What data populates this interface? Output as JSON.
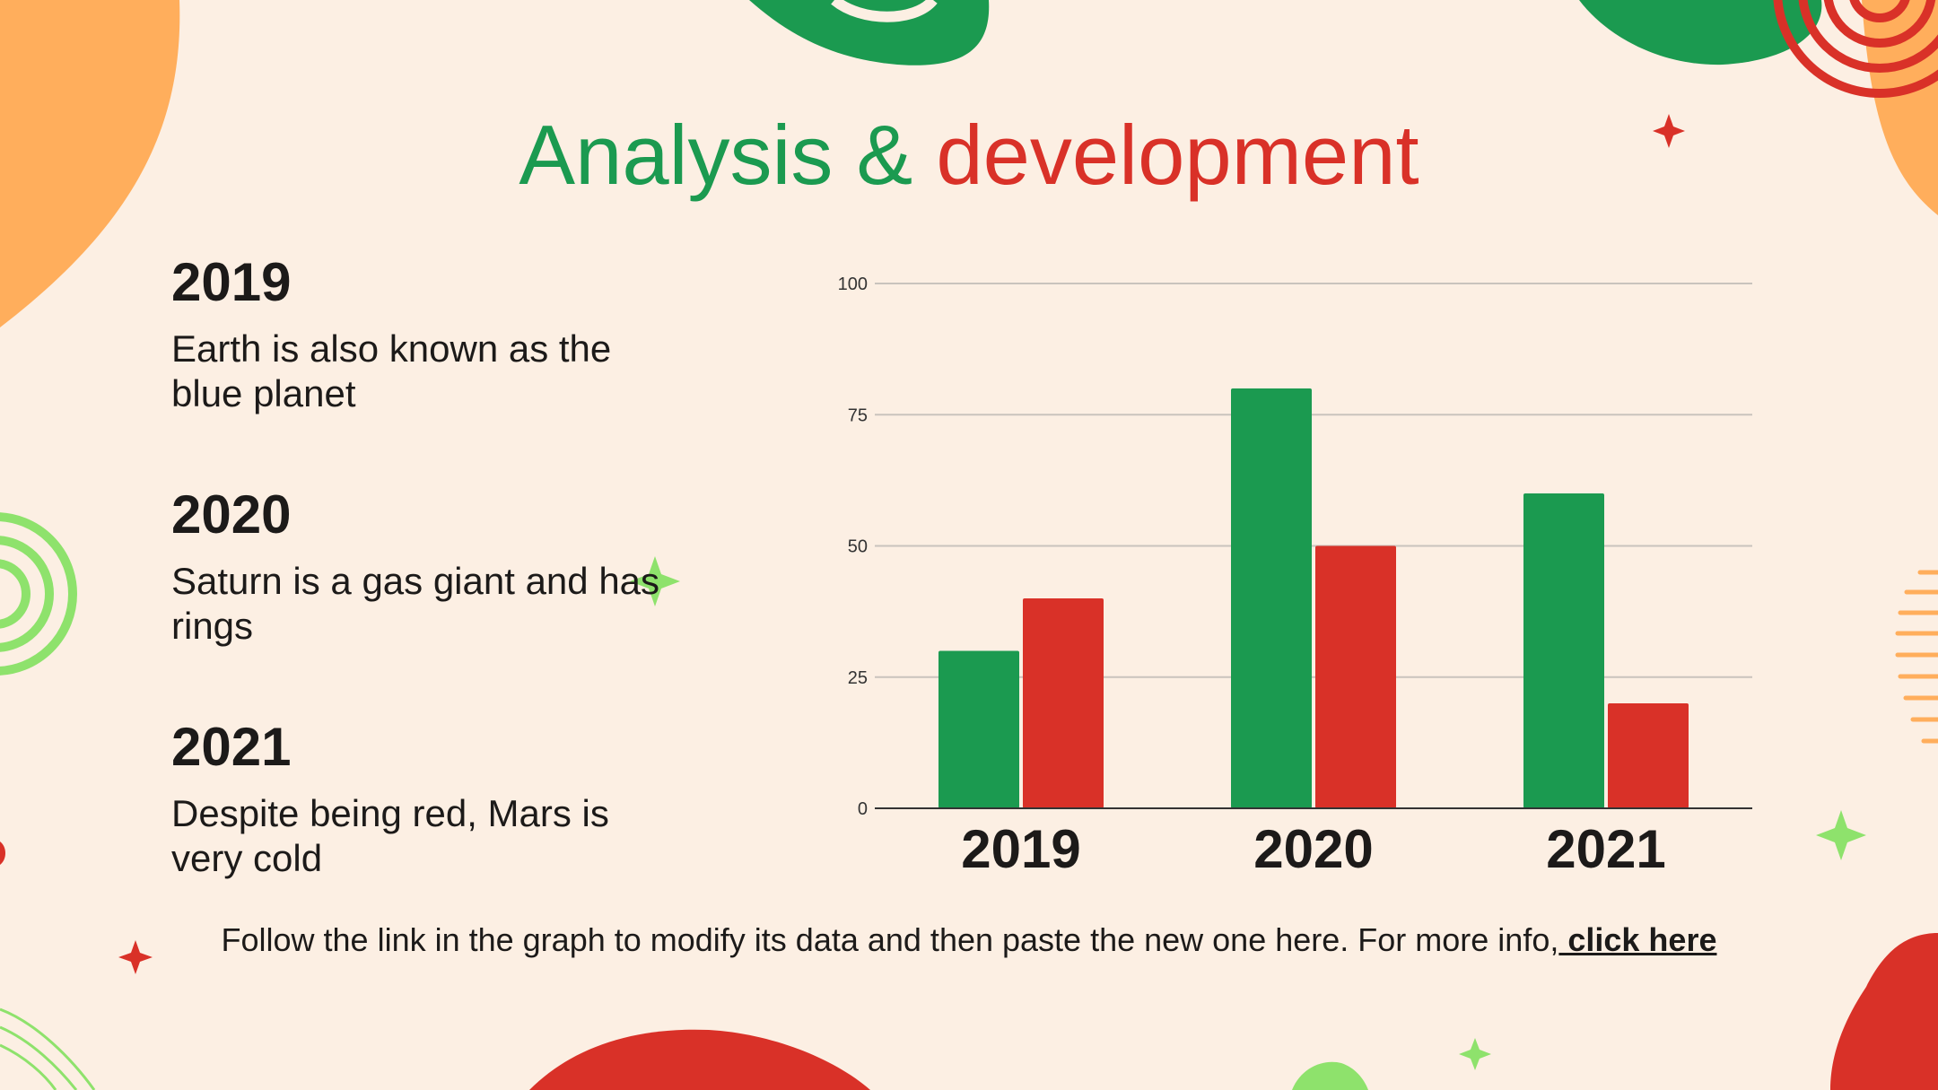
{
  "title": {
    "part1": "Analysis & ",
    "part2": "development"
  },
  "items": [
    {
      "year": "2019",
      "description": "Earth is also known as the blue planet"
    },
    {
      "year": "2020",
      "description": "Saturn is a gas giant and has rings"
    },
    {
      "year": "2021",
      "description": "Despite being red, Mars is very cold"
    }
  ],
  "footnote": {
    "text": "Follow the link in the graph to modify its data and then paste the new one here. For more info,",
    "link": " click here"
  },
  "colors": {
    "green": "#1b9a50",
    "red": "#d93128",
    "orange": "#ffae5c",
    "light_green": "#8ee26c",
    "background": "#fcefe3"
  },
  "chart_data": {
    "type": "bar",
    "categories": [
      "2019",
      "2020",
      "2021"
    ],
    "series": [
      {
        "values": [
          30,
          80,
          60
        ],
        "color": "#1b9a50"
      },
      {
        "values": [
          40,
          50,
          20
        ],
        "color": "#d93128"
      }
    ],
    "yticks": [
      0,
      25,
      50,
      75,
      100
    ],
    "ylim": [
      0,
      100
    ],
    "grid": true,
    "title": "",
    "xlabel": "",
    "ylabel": ""
  }
}
